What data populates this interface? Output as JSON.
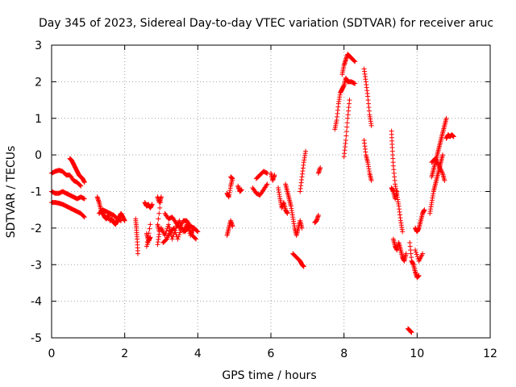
{
  "chart_data": {
    "type": "scatter",
    "title": "Day 345 of 2023, Sidereal Day-to-day VTEC variation (SDTVAR) for receiver aruc",
    "xlabel": "GPS time / hours",
    "ylabel": "SDTVAR / TECUs",
    "xlim": [
      0,
      12
    ],
    "ylim": [
      -5,
      3
    ],
    "xticks": [
      0,
      2,
      4,
      6,
      8,
      10,
      12
    ],
    "yticks": [
      -5,
      -4,
      -3,
      -2,
      -1,
      0,
      1,
      2,
      3
    ],
    "grid": true,
    "marker": "+",
    "colors": {
      "series": "#ff0000",
      "axes": "#000000",
      "grid": "#a0a0a0"
    },
    "series": [
      {
        "name": "SDTVAR",
        "segments": [
          [
            [
              0.0,
              -0.5
            ],
            [
              0.1,
              -0.45
            ],
            [
              0.2,
              -0.42
            ],
            [
              0.3,
              -0.45
            ],
            [
              0.4,
              -0.55
            ],
            [
              0.5,
              -0.55
            ],
            [
              0.6,
              -0.7
            ],
            [
              0.7,
              -0.75
            ],
            [
              0.8,
              -0.85
            ]
          ],
          [
            [
              0.5,
              -0.1
            ],
            [
              0.55,
              -0.15
            ],
            [
              0.6,
              -0.25
            ],
            [
              0.65,
              -0.35
            ],
            [
              0.7,
              -0.45
            ],
            [
              0.75,
              -0.55
            ],
            [
              0.8,
              -0.6
            ],
            [
              0.85,
              -0.65
            ],
            [
              0.9,
              -0.75
            ]
          ],
          [
            [
              0.0,
              -1.0
            ],
            [
              0.1,
              -1.05
            ],
            [
              0.2,
              -1.05
            ],
            [
              0.3,
              -1.0
            ],
            [
              0.4,
              -1.05
            ],
            [
              0.5,
              -1.1
            ],
            [
              0.6,
              -1.15
            ],
            [
              0.7,
              -1.2
            ],
            [
              0.8,
              -1.15
            ],
            [
              0.9,
              -1.2
            ]
          ],
          [
            [
              0.0,
              -1.3
            ],
            [
              0.1,
              -1.3
            ],
            [
              0.2,
              -1.32
            ],
            [
              0.3,
              -1.35
            ],
            [
              0.4,
              -1.4
            ],
            [
              0.5,
              -1.45
            ],
            [
              0.6,
              -1.5
            ],
            [
              0.7,
              -1.55
            ],
            [
              0.8,
              -1.6
            ],
            [
              0.9,
              -1.7
            ]
          ],
          [
            [
              1.25,
              -1.15
            ],
            [
              1.3,
              -1.3
            ],
            [
              1.35,
              -1.5
            ],
            [
              1.4,
              -1.6
            ],
            [
              1.45,
              -1.7
            ],
            [
              1.5,
              -1.75
            ],
            [
              1.55,
              -1.65
            ],
            [
              1.6,
              -1.8
            ],
            [
              1.65,
              -1.75
            ],
            [
              1.7,
              -1.85
            ],
            [
              1.75,
              -1.9
            ],
            [
              1.8,
              -1.8
            ],
            [
              1.85,
              -1.7
            ],
            [
              1.9,
              -1.6
            ],
            [
              1.95,
              -1.7
            ],
            [
              2.0,
              -1.8
            ]
          ],
          [
            [
              1.3,
              -1.6
            ],
            [
              1.4,
              -1.5
            ],
            [
              1.5,
              -1.55
            ],
            [
              1.6,
              -1.6
            ],
            [
              1.7,
              -1.65
            ],
            [
              1.8,
              -1.75
            ],
            [
              1.9,
              -1.8
            ]
          ],
          [
            [
              2.3,
              -1.75
            ],
            [
              2.32,
              -2.0
            ],
            [
              2.34,
              -2.3
            ],
            [
              2.36,
              -2.7
            ]
          ],
          [
            [
              2.55,
              -1.3
            ],
            [
              2.6,
              -1.4
            ],
            [
              2.65,
              -1.35
            ],
            [
              2.7,
              -1.45
            ],
            [
              2.75,
              -1.35
            ]
          ],
          [
            [
              2.6,
              -2.15
            ],
            [
              2.65,
              -2.35
            ],
            [
              2.7,
              -2.25
            ],
            [
              2.6,
              -2.5
            ],
            [
              2.7,
              -1.9
            ]
          ],
          [
            [
              2.9,
              -1.15
            ],
            [
              2.95,
              -1.3
            ],
            [
              3.0,
              -1.15
            ],
            [
              2.9,
              -1.9
            ],
            [
              2.95,
              -2.1
            ],
            [
              2.9,
              -2.45
            ]
          ],
          [
            [
              3.0,
              -2.0
            ],
            [
              3.1,
              -2.2
            ],
            [
              3.2,
              -1.9
            ],
            [
              3.3,
              -2.3
            ],
            [
              3.4,
              -2.0
            ],
            [
              3.5,
              -1.8
            ],
            [
              3.6,
              -2.1
            ],
            [
              3.7,
              -1.9
            ],
            [
              3.8,
              -2.2
            ],
            [
              3.9,
              -2.0
            ],
            [
              4.0,
              -2.1
            ]
          ],
          [
            [
              3.05,
              -2.4
            ],
            [
              3.15,
              -2.3
            ],
            [
              3.25,
              -2.1
            ],
            [
              3.35,
              -2.0
            ],
            [
              3.45,
              -2.3
            ],
            [
              3.55,
              -2.0
            ],
            [
              3.65,
              -2.1
            ],
            [
              3.75,
              -1.95
            ],
            [
              3.85,
              -2.2
            ],
            [
              3.95,
              -2.3
            ]
          ],
          [
            [
              3.1,
              -1.6
            ],
            [
              3.2,
              -1.75
            ],
            [
              3.3,
              -1.7
            ],
            [
              3.4,
              -1.85
            ],
            [
              3.5,
              -2.0
            ],
            [
              3.6,
              -1.8
            ],
            [
              3.7,
              -1.8
            ],
            [
              3.8,
              -1.95
            ],
            [
              3.9,
              -2.0
            ]
          ],
          [
            [
              4.8,
              -2.2
            ],
            [
              4.85,
              -2.0
            ],
            [
              4.9,
              -1.8
            ],
            [
              4.95,
              -1.95
            ]
          ],
          [
            [
              4.8,
              -1.05
            ],
            [
              4.85,
              -1.15
            ],
            [
              4.9,
              -0.85
            ],
            [
              4.95,
              -0.65
            ],
            [
              4.9,
              -0.6
            ]
          ],
          [
            [
              5.1,
              -0.85
            ],
            [
              5.15,
              -1.0
            ],
            [
              5.2,
              -0.95
            ]
          ],
          [
            [
              5.5,
              -0.9
            ],
            [
              5.6,
              -1.05
            ],
            [
              5.7,
              -1.1
            ],
            [
              5.8,
              -0.95
            ],
            [
              5.9,
              -0.8
            ]
          ],
          [
            [
              5.6,
              -0.65
            ],
            [
              5.7,
              -0.55
            ],
            [
              5.8,
              -0.45
            ],
            [
              5.9,
              -0.5
            ]
          ],
          [
            [
              6.0,
              -0.5
            ],
            [
              6.05,
              -0.7
            ],
            [
              6.1,
              -0.55
            ]
          ],
          [
            [
              6.2,
              -0.9
            ],
            [
              6.25,
              -1.2
            ],
            [
              6.3,
              -1.45
            ],
            [
              6.35,
              -1.3
            ],
            [
              6.4,
              -1.5
            ],
            [
              6.45,
              -1.6
            ]
          ],
          [
            [
              6.4,
              -0.8
            ],
            [
              6.45,
              -1.0
            ],
            [
              6.5,
              -1.2
            ],
            [
              6.55,
              -1.4
            ],
            [
              6.6,
              -1.7
            ],
            [
              6.65,
              -2.0
            ],
            [
              6.7,
              -2.2
            ],
            [
              6.75,
              -2.0
            ],
            [
              6.8,
              -1.8
            ],
            [
              6.85,
              -2.0
            ]
          ],
          [
            [
              6.6,
              -2.7
            ],
            [
              6.7,
              -2.8
            ],
            [
              6.8,
              -2.9
            ],
            [
              6.85,
              -3.0
            ],
            [
              6.9,
              -3.05
            ]
          ],
          [
            [
              6.8,
              -1.0
            ],
            [
              6.85,
              -0.6
            ],
            [
              6.9,
              -0.2
            ],
            [
              6.95,
              0.1
            ]
          ],
          [
            [
              7.2,
              -1.85
            ],
            [
              7.25,
              -1.8
            ],
            [
              7.3,
              -1.65
            ]
          ],
          [
            [
              7.3,
              -0.5
            ],
            [
              7.35,
              -0.35
            ]
          ],
          [
            [
              7.75,
              0.7
            ],
            [
              7.8,
              0.95
            ],
            [
              7.85,
              1.4
            ],
            [
              7.9,
              1.7
            ],
            [
              7.95,
              1.8
            ],
            [
              8.0,
              1.9
            ],
            [
              8.05,
              2.1
            ],
            [
              8.1,
              2.0
            ],
            [
              8.2,
              2.0
            ],
            [
              8.3,
              1.95
            ]
          ],
          [
            [
              7.95,
              2.2
            ],
            [
              8.0,
              2.45
            ],
            [
              8.05,
              2.6
            ],
            [
              8.1,
              2.75
            ],
            [
              8.15,
              2.7
            ],
            [
              8.2,
              2.65
            ],
            [
              8.3,
              2.55
            ]
          ],
          [
            [
              8.0,
              -0.05
            ],
            [
              8.05,
              0.4
            ],
            [
              8.1,
              1.0
            ],
            [
              8.15,
              1.5
            ]
          ],
          [
            [
              8.55,
              2.35
            ],
            [
              8.6,
              2.0
            ],
            [
              8.65,
              1.6
            ],
            [
              8.7,
              1.1
            ],
            [
              8.75,
              0.8
            ]
          ],
          [
            [
              8.55,
              0.4
            ],
            [
              8.6,
              0.0
            ],
            [
              8.65,
              -0.2
            ],
            [
              8.7,
              -0.5
            ],
            [
              8.75,
              -0.7
            ]
          ],
          [
            [
              9.3,
              0.65
            ],
            [
              9.32,
              0.2
            ],
            [
              9.35,
              -0.3
            ],
            [
              9.4,
              -0.8
            ],
            [
              9.45,
              -1.1
            ],
            [
              9.5,
              -1.4
            ],
            [
              9.55,
              -1.8
            ],
            [
              9.6,
              -2.1
            ]
          ],
          [
            [
              9.3,
              -0.9
            ],
            [
              9.35,
              -1.0
            ],
            [
              9.4,
              -1.2
            ],
            [
              9.45,
              -1.0
            ]
          ],
          [
            [
              9.35,
              -2.3
            ],
            [
              9.4,
              -2.5
            ],
            [
              9.45,
              -2.6
            ],
            [
              9.5,
              -2.4
            ],
            [
              9.55,
              -2.6
            ],
            [
              9.6,
              -2.8
            ],
            [
              9.65,
              -2.9
            ],
            [
              9.7,
              -2.7
            ]
          ],
          [
            [
              9.8,
              -2.4
            ],
            [
              9.85,
              -2.9
            ],
            [
              9.9,
              -3.0
            ],
            [
              9.95,
              -3.2
            ],
            [
              10.0,
              -3.35
            ],
            [
              10.05,
              -3.3
            ]
          ],
          [
            [
              9.95,
              -2.0
            ],
            [
              10.0,
              -2.1
            ],
            [
              10.05,
              -2.0
            ],
            [
              10.1,
              -1.8
            ],
            [
              10.15,
              -1.6
            ],
            [
              10.2,
              -1.5
            ]
          ],
          [
            [
              9.95,
              -2.6
            ],
            [
              10.05,
              -2.9
            ],
            [
              10.15,
              -2.7
            ]
          ],
          [
            [
              9.75,
              -4.75
            ],
            [
              9.8,
              -4.8
            ],
            [
              9.85,
              -4.85
            ]
          ],
          [
            [
              10.35,
              -1.6
            ],
            [
              10.4,
              -1.3
            ],
            [
              10.45,
              -1.0
            ],
            [
              10.5,
              -0.8
            ],
            [
              10.55,
              -0.6
            ],
            [
              10.6,
              -0.4
            ],
            [
              10.65,
              -0.2
            ],
            [
              10.7,
              0.0
            ]
          ],
          [
            [
              10.4,
              -0.6
            ],
            [
              10.45,
              -0.4
            ],
            [
              10.5,
              -0.2
            ],
            [
              10.55,
              0.0
            ],
            [
              10.6,
              0.2
            ],
            [
              10.65,
              0.4
            ],
            [
              10.7,
              0.6
            ],
            [
              10.75,
              0.8
            ],
            [
              10.8,
              1.0
            ]
          ],
          [
            [
              10.4,
              -0.2
            ],
            [
              10.5,
              -0.1
            ],
            [
              10.6,
              -0.3
            ],
            [
              10.7,
              -0.5
            ],
            [
              10.75,
              -0.7
            ]
          ],
          [
            [
              10.8,
              0.45
            ],
            [
              10.85,
              0.55
            ],
            [
              10.9,
              0.5
            ],
            [
              10.95,
              0.55
            ],
            [
              11.0,
              0.5
            ]
          ]
        ]
      }
    ]
  }
}
